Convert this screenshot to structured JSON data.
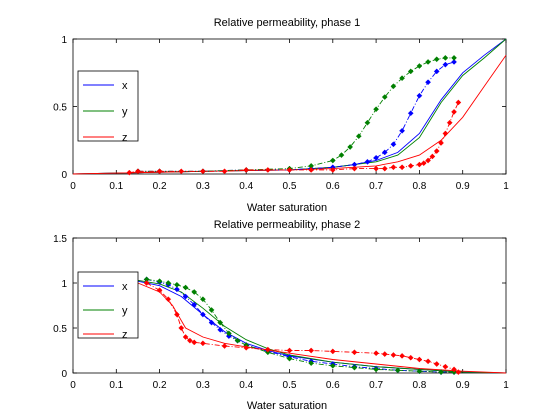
{
  "chart_data": [
    {
      "type": "line",
      "title": "Relative permeability, phase 1",
      "xlabel": "Water saturation",
      "ylabel": "",
      "xlim": [
        0,
        1
      ],
      "ylim": [
        0,
        1
      ],
      "xticks": [
        "0",
        "0.1",
        "0.2",
        "0.3",
        "0.4",
        "0.5",
        "0.6",
        "0.7",
        "0.8",
        "0.9",
        "1"
      ],
      "yticks": [
        "0",
        "0.5",
        "1"
      ],
      "grid": false,
      "legend_position": "left",
      "series": [
        {
          "name": "x",
          "color": "#0000ff",
          "style": "solid",
          "x": [
            0.0,
            0.3,
            0.5,
            0.6,
            0.65,
            0.7,
            0.75,
            0.8,
            0.85,
            0.9,
            0.95,
            1.0
          ],
          "y": [
            0.0,
            0.02,
            0.03,
            0.05,
            0.07,
            0.1,
            0.16,
            0.3,
            0.55,
            0.75,
            0.88,
            1.0
          ]
        },
        {
          "name": "y",
          "color": "#008000",
          "style": "solid",
          "x": [
            0.0,
            0.3,
            0.5,
            0.6,
            0.65,
            0.7,
            0.75,
            0.8,
            0.85,
            0.9,
            0.95,
            1.0
          ],
          "y": [
            0.0,
            0.02,
            0.03,
            0.05,
            0.07,
            0.09,
            0.14,
            0.27,
            0.53,
            0.73,
            0.86,
            1.0
          ]
        },
        {
          "name": "z",
          "color": "#ff0000",
          "style": "solid",
          "x": [
            0.0,
            0.3,
            0.5,
            0.6,
            0.7,
            0.75,
            0.8,
            0.85,
            0.9,
            0.95,
            1.0
          ],
          "y": [
            0.0,
            0.02,
            0.03,
            0.04,
            0.06,
            0.09,
            0.14,
            0.25,
            0.42,
            0.65,
            0.88
          ]
        },
        {
          "name": "x",
          "color": "#0000ff",
          "style": "dashdot-marker",
          "x": [
            0.15,
            0.2,
            0.3,
            0.4,
            0.5,
            0.55,
            0.6,
            0.65,
            0.68,
            0.7,
            0.72,
            0.74,
            0.76,
            0.78,
            0.8,
            0.82,
            0.84,
            0.86,
            0.88
          ],
          "y": [
            0.02,
            0.02,
            0.02,
            0.03,
            0.03,
            0.04,
            0.05,
            0.07,
            0.09,
            0.12,
            0.16,
            0.22,
            0.32,
            0.45,
            0.58,
            0.68,
            0.76,
            0.81,
            0.83
          ]
        },
        {
          "name": "y",
          "color": "#008000",
          "style": "dashdot-marker",
          "x": [
            0.15,
            0.2,
            0.3,
            0.4,
            0.5,
            0.55,
            0.6,
            0.62,
            0.64,
            0.66,
            0.68,
            0.7,
            0.72,
            0.74,
            0.76,
            0.78,
            0.8,
            0.82,
            0.84,
            0.86,
            0.88
          ],
          "y": [
            0.02,
            0.02,
            0.02,
            0.03,
            0.04,
            0.06,
            0.1,
            0.14,
            0.2,
            0.28,
            0.38,
            0.48,
            0.57,
            0.65,
            0.71,
            0.76,
            0.8,
            0.83,
            0.85,
            0.86,
            0.86
          ]
        },
        {
          "name": "z",
          "color": "#ff0000",
          "style": "dashdot-marker",
          "x": [
            0.13,
            0.15,
            0.2,
            0.25,
            0.3,
            0.35,
            0.4,
            0.45,
            0.5,
            0.55,
            0.6,
            0.65,
            0.7,
            0.72,
            0.74,
            0.76,
            0.78,
            0.8,
            0.81,
            0.82,
            0.83,
            0.84,
            0.85,
            0.86,
            0.87,
            0.88,
            0.89
          ],
          "y": [
            0.01,
            0.02,
            0.02,
            0.02,
            0.02,
            0.02,
            0.03,
            0.03,
            0.03,
            0.03,
            0.03,
            0.04,
            0.04,
            0.04,
            0.05,
            0.05,
            0.06,
            0.07,
            0.08,
            0.1,
            0.13,
            0.17,
            0.23,
            0.3,
            0.38,
            0.46,
            0.53
          ]
        }
      ]
    },
    {
      "type": "line",
      "title": "Relative permeability, phase 2",
      "xlabel": "Water saturation",
      "ylabel": "",
      "xlim": [
        0,
        1
      ],
      "ylim": [
        0,
        1.5
      ],
      "xticks": [
        "0",
        "0.1",
        "0.2",
        "0.3",
        "0.4",
        "0.5",
        "0.6",
        "0.7",
        "0.8",
        "0.9",
        "1"
      ],
      "yticks": [
        "0",
        "0.5",
        "1",
        "1.5"
      ],
      "grid": false,
      "legend_position": "left",
      "series": [
        {
          "name": "x",
          "color": "#0000ff",
          "style": "solid",
          "x": [
            0.15,
            0.2,
            0.25,
            0.3,
            0.35,
            0.4,
            0.45,
            0.5,
            0.6,
            0.7,
            0.8,
            0.9,
            1.0
          ],
          "y": [
            1.02,
            0.97,
            0.85,
            0.65,
            0.46,
            0.33,
            0.25,
            0.19,
            0.12,
            0.07,
            0.04,
            0.01,
            0.0
          ]
        },
        {
          "name": "y",
          "color": "#008000",
          "style": "solid",
          "x": [
            0.15,
            0.2,
            0.25,
            0.3,
            0.35,
            0.4,
            0.45,
            0.5,
            0.6,
            0.7,
            0.8,
            0.9,
            1.0
          ],
          "y": [
            1.03,
            0.99,
            0.9,
            0.72,
            0.52,
            0.37,
            0.27,
            0.2,
            0.12,
            0.07,
            0.04,
            0.01,
            0.0
          ]
        },
        {
          "name": "z",
          "color": "#ff0000",
          "style": "solid",
          "x": [
            0.15,
            0.2,
            0.23,
            0.26,
            0.3,
            0.35,
            0.4,
            0.5,
            0.6,
            0.7,
            0.8,
            0.9,
            1.0
          ],
          "y": [
            1.0,
            0.9,
            0.75,
            0.5,
            0.4,
            0.33,
            0.29,
            0.22,
            0.15,
            0.1,
            0.05,
            0.02,
            0.0
          ]
        },
        {
          "name": "x",
          "color": "#0000ff",
          "style": "dashdot-marker",
          "x": [
            0.17,
            0.2,
            0.22,
            0.24,
            0.26,
            0.28,
            0.3,
            0.32,
            0.34,
            0.36,
            0.38,
            0.4,
            0.45,
            0.5,
            0.55,
            0.6,
            0.65,
            0.7,
            0.75,
            0.8,
            0.85,
            0.88
          ],
          "y": [
            1.04,
            1.01,
            0.98,
            0.93,
            0.85,
            0.76,
            0.65,
            0.56,
            0.48,
            0.41,
            0.36,
            0.31,
            0.24,
            0.18,
            0.13,
            0.1,
            0.07,
            0.05,
            0.03,
            0.02,
            0.01,
            0.01
          ]
        },
        {
          "name": "y",
          "color": "#008000",
          "style": "dashdot-marker",
          "x": [
            0.17,
            0.2,
            0.22,
            0.24,
            0.26,
            0.28,
            0.3,
            0.32,
            0.34,
            0.36,
            0.38,
            0.4,
            0.45,
            0.5,
            0.55,
            0.6,
            0.65,
            0.7,
            0.75,
            0.8,
            0.85,
            0.88
          ],
          "y": [
            1.04,
            1.02,
            1.0,
            0.98,
            0.95,
            0.9,
            0.82,
            0.7,
            0.56,
            0.44,
            0.36,
            0.31,
            0.23,
            0.16,
            0.11,
            0.08,
            0.06,
            0.04,
            0.03,
            0.02,
            0.01,
            0.01
          ]
        },
        {
          "name": "z",
          "color": "#ff0000",
          "style": "dashdot-marker",
          "x": [
            0.17,
            0.2,
            0.22,
            0.24,
            0.25,
            0.26,
            0.27,
            0.28,
            0.3,
            0.35,
            0.4,
            0.45,
            0.5,
            0.55,
            0.6,
            0.65,
            0.7,
            0.72,
            0.74,
            0.76,
            0.78,
            0.8,
            0.82,
            0.84,
            0.86,
            0.88,
            0.89
          ],
          "y": [
            1.0,
            0.92,
            0.82,
            0.65,
            0.5,
            0.4,
            0.36,
            0.34,
            0.33,
            0.3,
            0.28,
            0.26,
            0.25,
            0.25,
            0.24,
            0.23,
            0.22,
            0.21,
            0.2,
            0.19,
            0.17,
            0.15,
            0.13,
            0.1,
            0.07,
            0.04,
            0.01
          ]
        }
      ]
    }
  ]
}
